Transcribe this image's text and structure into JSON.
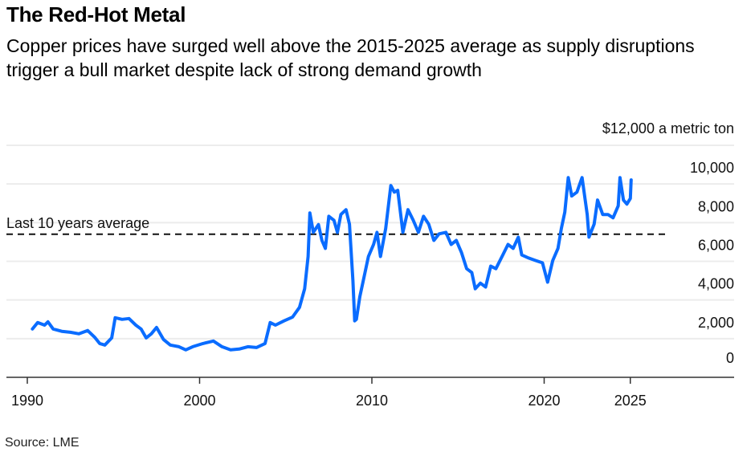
{
  "header": {
    "title": "The Red-Hot Metal",
    "subtitle": "Copper prices have surged well above the 2015-2025 average as supply disruptions trigger a bull market despite lack of strong demand growth"
  },
  "footer": {
    "source": "Source: LME"
  },
  "colors": {
    "series": "#0a6cff",
    "average_line": "#111111",
    "gridline": "#ececec",
    "axis": "#333333"
  },
  "chart_data": {
    "type": "line",
    "title": "The Red-Hot Metal",
    "subtitle": "Copper prices have surged well above the 2015-2025 average as supply disruptions trigger a bull market despite lack of strong demand growth",
    "xlabel": "",
    "ylabel": "$12,000 a metric ton",
    "unit_label": "$12,000 a metric ton",
    "xlim": [
      1989.7,
      2028.6
    ],
    "ylim": [
      0,
      12000
    ],
    "x_ticks": [
      1990,
      2000,
      2010,
      2020,
      2025
    ],
    "x_tick_labels": [
      "1990",
      "2000",
      "2010",
      "2020",
      "2025"
    ],
    "y_ticks": [
      0,
      2000,
      4000,
      6000,
      8000,
      10000,
      12000
    ],
    "y_tick_labels": [
      "0",
      "2,000",
      "4,000",
      "6,000",
      "8,000",
      "10,000"
    ],
    "grid": true,
    "y_axis_side": "right",
    "annotations": [
      {
        "type": "hline",
        "label": "Last 10 years average",
        "value": 7400,
        "style": "dashed"
      }
    ],
    "series": [
      {
        "name": "Copper price (LME)",
        "x": [
          1990.3,
          1990.6,
          1991.0,
          1991.2,
          1991.5,
          1992.0,
          1992.5,
          1993.0,
          1993.5,
          1993.9,
          1994.2,
          1994.5,
          1994.9,
          1995.1,
          1995.5,
          1995.9,
          1996.3,
          1996.6,
          1996.9,
          1997.2,
          1997.5,
          1997.9,
          1998.3,
          1998.8,
          1999.2,
          1999.6,
          2000.2,
          2000.8,
          2001.3,
          2001.8,
          2002.3,
          2002.8,
          2003.3,
          2003.8,
          2004.1,
          2004.4,
          2004.9,
          2005.4,
          2005.8,
          2006.1,
          2006.3,
          2006.4,
          2006.6,
          2006.9,
          2007.1,
          2007.3,
          2007.5,
          2007.8,
          2008.0,
          2008.2,
          2008.5,
          2008.7,
          2008.9,
          2009.0,
          2009.1,
          2009.3,
          2009.5,
          2009.8,
          2010.1,
          2010.3,
          2010.5,
          2010.8,
          2011.1,
          2011.3,
          2011.5,
          2011.8,
          2012.1,
          2012.4,
          2012.7,
          2013.0,
          2013.3,
          2013.6,
          2013.9,
          2014.3,
          2014.6,
          2014.9,
          2015.2,
          2015.5,
          2015.8,
          2016.0,
          2016.3,
          2016.6,
          2016.9,
          2017.2,
          2017.6,
          2017.9,
          2018.2,
          2018.5,
          2018.7,
          2019.1,
          2019.5,
          2019.9,
          2020.2,
          2020.5,
          2020.8,
          2021.0,
          2021.2,
          2021.4,
          2021.6,
          2021.9,
          2022.2,
          2022.5,
          2022.6,
          2022.9,
          2023.1,
          2023.4,
          2023.7,
          2024.0,
          2024.3,
          2024.4,
          2024.6,
          2024.8,
          2025.0,
          2025.05
        ],
        "values": [
          2500,
          2830,
          2700,
          2870,
          2500,
          2380,
          2330,
          2250,
          2420,
          2080,
          1750,
          1670,
          2040,
          3080,
          3000,
          3040,
          2700,
          2500,
          2040,
          2250,
          2580,
          1960,
          1670,
          1580,
          1420,
          1580,
          1750,
          1875,
          1580,
          1420,
          1460,
          1580,
          1540,
          1750,
          2830,
          2700,
          2920,
          3120,
          3620,
          4580,
          6250,
          8500,
          7500,
          7900,
          7080,
          6670,
          8330,
          8120,
          7500,
          8420,
          8670,
          7920,
          5000,
          2920,
          3000,
          4170,
          5000,
          6250,
          6870,
          7500,
          6250,
          7700,
          9920,
          9580,
          9670,
          7500,
          8670,
          8120,
          7500,
          8330,
          7920,
          7080,
          7420,
          7500,
          6870,
          7080,
          6460,
          5620,
          5420,
          4580,
          4870,
          4670,
          5750,
          5620,
          6330,
          6870,
          6670,
          7250,
          6330,
          6170,
          6040,
          5920,
          4920,
          6040,
          6670,
          7700,
          8540,
          10330,
          9380,
          9580,
          10330,
          8420,
          7250,
          7920,
          9170,
          8420,
          8420,
          8250,
          8870,
          10330,
          9170,
          8960,
          9250,
          10210
        ]
      }
    ]
  }
}
